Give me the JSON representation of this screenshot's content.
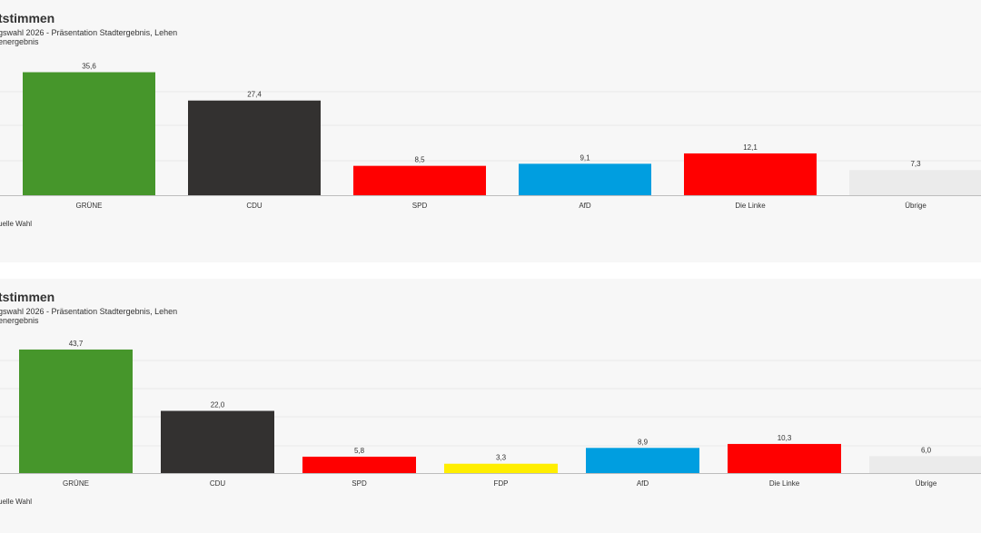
{
  "colors": {
    "GRÜNE": "#46962b",
    "CDU": "#333130",
    "SPD": "#ff0000",
    "FDP": "#ffee00",
    "AfD": "#009ee0",
    "Die Linke": "#ff0000",
    "Übrige": "#ebebeb"
  },
  "chart_data": [
    {
      "type": "bar",
      "title": "tstimmen",
      "subtitle_lines": [
        "gswahl 2026 - Präsentation Stadtergebnis, Lehen",
        "energebnis"
      ],
      "source": "uelle Wahl",
      "categories": [
        "GRÜNE",
        "CDU",
        "SPD",
        "AfD",
        "Die Linke",
        "Übrige"
      ],
      "values": [
        35.6,
        27.4,
        8.5,
        9.1,
        12.1,
        7.3
      ],
      "value_labels": [
        "35,6",
        "27,4",
        "8,5",
        "9,1",
        "12,1",
        "7,3"
      ],
      "ylim": [
        0,
        36
      ],
      "grid": true
    },
    {
      "type": "bar",
      "title": "tstimmen",
      "subtitle_lines": [
        "gswahl 2026 - Präsentation Stadtergebnis, Lehen",
        "energebnis"
      ],
      "source": "uelle Wahl",
      "categories": [
        "GRÜNE",
        "CDU",
        "SPD",
        "FDP",
        "AfD",
        "Die Linke",
        "Übrige"
      ],
      "values": [
        43.7,
        22.0,
        5.8,
        3.3,
        8.9,
        10.3,
        6.0
      ],
      "value_labels": [
        "43,7",
        "22,0",
        "5,8",
        "3,3",
        "8,9",
        "10,3",
        "6,0"
      ],
      "ylim": [
        0,
        44
      ],
      "grid": true
    }
  ]
}
